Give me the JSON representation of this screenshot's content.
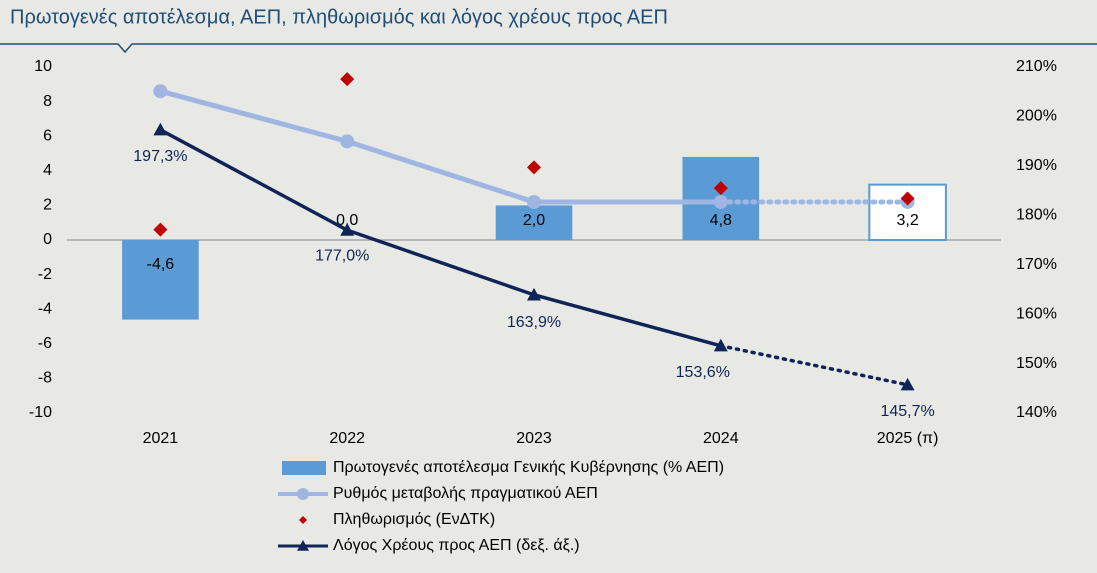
{
  "chart_data": {
    "type": "combo",
    "title": "Πρωτογενές αποτέλεσμα, ΑΕΠ, πληθωρισμός και λόγος χρέους προς ΑΕΠ",
    "categories": [
      "2021",
      "2022",
      "2023",
      "2024",
      "2025 (π)"
    ],
    "projected_index": 4,
    "series": [
      {
        "name": "Πρωτογενές αποτέλεσμα Γενικής Κυβέρνησης (% ΑΕΠ)",
        "kind": "bar",
        "color": "#5b9bd5",
        "values": [
          -4.6,
          0.0,
          2.0,
          4.8,
          3.2
        ],
        "value_labels": [
          "-4,6",
          "0,0",
          "2,0",
          "4,8",
          "3,2"
        ]
      },
      {
        "name": "Ρυθμός μεταβολής πραγματικού ΑΕΠ",
        "kind": "line-circle",
        "color": "#9fb6e2",
        "values": [
          8.6,
          5.7,
          2.2,
          2.2,
          2.2
        ]
      },
      {
        "name": "Πληθωρισμός (ΕνΔΤΚ)",
        "kind": "diamond",
        "color": "#c00000",
        "values": [
          0.6,
          9.3,
          4.2,
          3.0,
          2.4
        ]
      },
      {
        "name": "Λόγος Χρέους προς ΑΕΠ (δεξ. άξ.)",
        "kind": "line-triangle",
        "color": "#0f2557",
        "axis": "y2",
        "values": [
          197.3,
          177.0,
          163.9,
          153.6,
          145.7
        ],
        "value_labels": [
          "197,3%",
          "177,0%",
          "163,9%",
          "153,6%",
          "145,7%"
        ]
      }
    ],
    "ylim": [
      -10,
      10
    ],
    "yticks": [
      -10,
      -8,
      -6,
      -4,
      -2,
      0,
      2,
      4,
      6,
      8,
      10
    ],
    "y2lim": [
      140,
      210
    ],
    "y2ticks": [
      {
        "value": 140,
        "label": "140%"
      },
      {
        "value": 150,
        "label": "150%"
      },
      {
        "value": 160,
        "label": "160%"
      },
      {
        "value": 170,
        "label": "170%"
      },
      {
        "value": 180,
        "label": "180%"
      },
      {
        "value": 190,
        "label": "190%"
      },
      {
        "value": 200,
        "label": "200%"
      },
      {
        "value": 210,
        "label": "210%"
      }
    ]
  }
}
